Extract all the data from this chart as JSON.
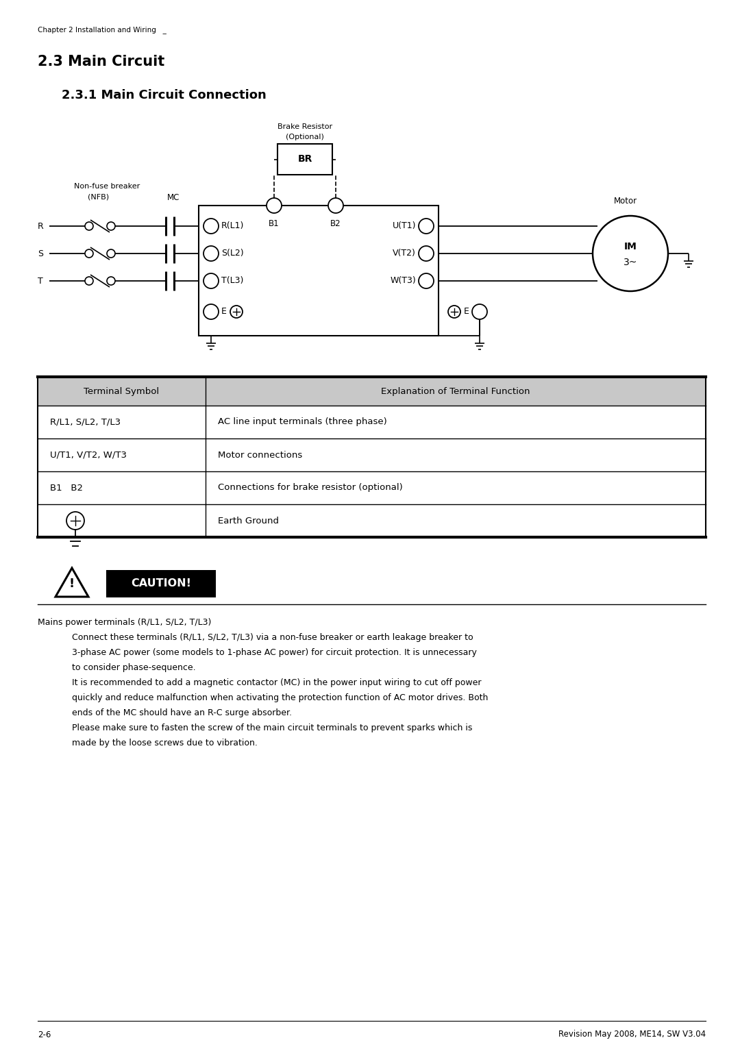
{
  "page_title_small": "Chapter 2 Installation and Wiring   _",
  "section_title": "2.3 Main Circuit",
  "subsection_title": "2.3.1 Main Circuit Connection",
  "table_header": [
    "Terminal Symbol",
    "Explanation of Terminal Function"
  ],
  "table_rows": [
    [
      "R/L1, S/L2, T/L3",
      "AC line input terminals (three phase)"
    ],
    [
      "U/T1, V/T2, W/T3",
      "Motor connections"
    ],
    [
      "B1   B2",
      "Connections for brake resistor (optional)"
    ],
    [
      "earth",
      "Earth Ground"
    ]
  ],
  "caution_text": "CAUTION!",
  "body_text_line1": "Mains power terminals (R/L1, S/L2, T/L3)",
  "body_text_indented": [
    "Connect these terminals (R/L1, S/L2, T/L3) via a non-fuse breaker or earth leakage breaker to",
    "3-phase AC power (some models to 1-phase AC power) for circuit protection. It is unnecessary",
    "to consider phase-sequence.",
    "It is recommended to add a magnetic contactor (MC) in the power input wiring to cut off power",
    "quickly and reduce malfunction when activating the protection function of AC motor drives. Both",
    "ends of the MC should have an R-C surge absorber.",
    "Please make sure to fasten the screw of the main circuit terminals to prevent sparks which is",
    "made by the loose screws due to vibration."
  ],
  "footer_left": "2-6",
  "footer_right": "Revision May 2008, ME14, SW V3.04",
  "bg_color": "#ffffff",
  "text_color": "#000000",
  "header_bg": "#c8c8c8"
}
